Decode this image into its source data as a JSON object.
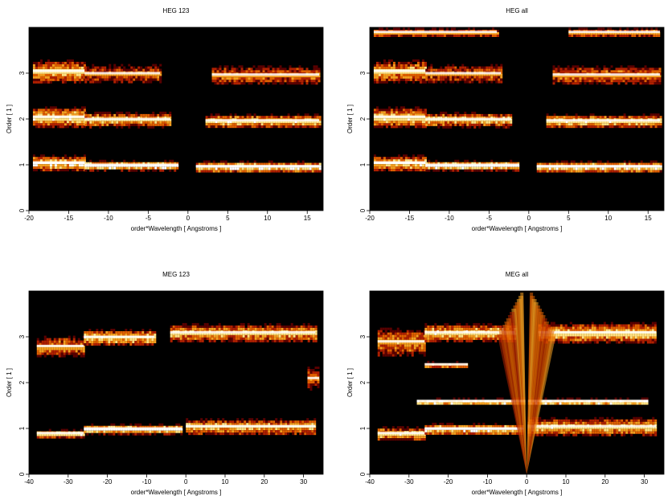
{
  "chart_data": [
    {
      "type": "heatmap",
      "title": "HEG 123",
      "xlabel": "order*Wavelength [ Angstroms ]",
      "ylabel": "Order [ 1 ]",
      "xlim": [
        -20,
        17
      ],
      "ylim": [
        0,
        4
      ],
      "xticks": [
        -20,
        -15,
        -10,
        -5,
        0,
        5,
        10,
        15
      ],
      "yticks": [
        0,
        1,
        2,
        3
      ],
      "colormap": [
        "#000000",
        "#5a0000",
        "#b02000",
        "#e06000",
        "#f5a020",
        "#ffe080",
        "#ffffff"
      ],
      "bands": [
        {
          "order": 1,
          "segments": [
            {
              "x": [
                -19.5,
                -13
              ],
              "center": 1.05,
              "width": 0.35,
              "intensity": 0.8
            },
            {
              "x": [
                -13,
                -1.2
              ],
              "center": 1.0,
              "width": 0.22,
              "intensity": 0.9
            },
            {
              "x": [
                1,
                16.5
              ],
              "center": 0.97,
              "width": 0.25,
              "intensity": 0.85
            }
          ]
        },
        {
          "order": 2,
          "segments": [
            {
              "x": [
                -19.5,
                -13
              ],
              "center": 2.05,
              "width": 0.45,
              "intensity": 0.75
            },
            {
              "x": [
                -13,
                -2.2
              ],
              "center": 2.0,
              "width": 0.32,
              "intensity": 0.7
            },
            {
              "x": [
                2.2,
                16.5
              ],
              "center": 1.97,
              "width": 0.3,
              "intensity": 0.75
            }
          ]
        },
        {
          "order": 3,
          "segments": [
            {
              "x": [
                -19.5,
                -13
              ],
              "center": 3.05,
              "width": 0.5,
              "intensity": 0.65
            },
            {
              "x": [
                -13,
                -3.5
              ],
              "center": 3.0,
              "width": 0.4,
              "intensity": 0.45
            },
            {
              "x": [
                3,
                16.5
              ],
              "center": 2.97,
              "width": 0.4,
              "intensity": 0.5
            }
          ]
        }
      ]
    },
    {
      "type": "heatmap",
      "title": "HEG all",
      "xlabel": "order*Wavelength [ Angstroms ]",
      "ylabel": "Order [ 1 ]",
      "xlim": [
        -20,
        17
      ],
      "ylim": [
        0,
        4
      ],
      "xticks": [
        -20,
        -15,
        -10,
        -5,
        0,
        5,
        10,
        15
      ],
      "yticks": [
        0,
        1,
        2,
        3
      ],
      "colormap": [
        "#000000",
        "#5a0000",
        "#b02000",
        "#e06000",
        "#f5a020",
        "#ffe080",
        "#ffffff"
      ],
      "bands": [
        {
          "order": 1,
          "segments": [
            {
              "x": [
                -19.5,
                -13
              ],
              "center": 1.05,
              "width": 0.35,
              "intensity": 0.8
            },
            {
              "x": [
                -13,
                -1.2
              ],
              "center": 1.0,
              "width": 0.22,
              "intensity": 0.9
            },
            {
              "x": [
                1,
                16.5
              ],
              "center": 0.97,
              "width": 0.25,
              "intensity": 0.85
            }
          ]
        },
        {
          "order": 2,
          "segments": [
            {
              "x": [
                -19.5,
                -13
              ],
              "center": 2.05,
              "width": 0.45,
              "intensity": 0.75
            },
            {
              "x": [
                -13,
                -2.2
              ],
              "center": 2.0,
              "width": 0.32,
              "intensity": 0.7
            },
            {
              "x": [
                2.2,
                16.5
              ],
              "center": 1.97,
              "width": 0.3,
              "intensity": 0.75
            }
          ]
        },
        {
          "order": 3,
          "segments": [
            {
              "x": [
                -19.5,
                -13
              ],
              "center": 3.05,
              "width": 0.5,
              "intensity": 0.65
            },
            {
              "x": [
                -13,
                -3.5
              ],
              "center": 3.0,
              "width": 0.4,
              "intensity": 0.45
            },
            {
              "x": [
                3,
                16.5
              ],
              "center": 2.97,
              "width": 0.4,
              "intensity": 0.5
            }
          ]
        },
        {
          "order": 4,
          "segments": [
            {
              "x": [
                -19.5,
                -4
              ],
              "center": 3.9,
              "width": 0.2,
              "intensity": 0.45
            },
            {
              "x": [
                5,
                16.5
              ],
              "center": 3.9,
              "width": 0.2,
              "intensity": 0.5
            }
          ]
        }
      ]
    },
    {
      "type": "heatmap",
      "title": "MEG 123",
      "xlabel": "order*Wavelength [ Angstroms ]",
      "ylabel": "Order [ 1 ]",
      "xlim": [
        -40,
        35
      ],
      "ylim": [
        0,
        4
      ],
      "xticks": [
        -40,
        -30,
        -20,
        -10,
        0,
        10,
        20,
        30
      ],
      "yticks": [
        0,
        1,
        2,
        3
      ],
      "colormap": [
        "#000000",
        "#5a0000",
        "#b02000",
        "#e06000",
        "#f5a020",
        "#ffe080",
        "#ffffff"
      ],
      "bands": [
        {
          "order": 1,
          "segments": [
            {
              "x": [
                -38,
                -26
              ],
              "center": 0.9,
              "width": 0.18,
              "intensity": 0.75
            },
            {
              "x": [
                -26,
                -1
              ],
              "center": 1.0,
              "width": 0.22,
              "intensity": 0.85
            },
            {
              "x": [
                0,
                33
              ],
              "center": 1.05,
              "width": 0.35,
              "intensity": 0.7
            }
          ]
        },
        {
          "order": 2,
          "segments": [
            {
              "x": [
                31,
                34
              ],
              "center": 2.1,
              "width": 0.5,
              "intensity": 0.4
            }
          ]
        },
        {
          "order": 3,
          "segments": [
            {
              "x": [
                -38,
                -26
              ],
              "center": 2.8,
              "width": 0.45,
              "intensity": 0.55
            },
            {
              "x": [
                -26,
                -8
              ],
              "center": 3.0,
              "width": 0.35,
              "intensity": 0.75
            },
            {
              "x": [
                -4,
                33
              ],
              "center": 3.1,
              "width": 0.4,
              "intensity": 0.65
            }
          ]
        }
      ]
    },
    {
      "type": "heatmap",
      "title": "MEG all",
      "xlabel": "order*Wavelength [ Angstroms ]",
      "ylabel": "Order [ 1 ]",
      "xlim": [
        -40,
        35
      ],
      "ylim": [
        0,
        4
      ],
      "xticks": [
        -40,
        -30,
        -20,
        -10,
        0,
        10,
        20,
        30
      ],
      "yticks": [
        0,
        1,
        2,
        3
      ],
      "colormap": [
        "#000000",
        "#5a0000",
        "#b02000",
        "#e06000",
        "#f5a020",
        "#ffe080",
        "#ffffff"
      ],
      "bands": [
        {
          "order": 1,
          "segments": [
            {
              "x": [
                -38,
                -26
              ],
              "center": 0.9,
              "width": 0.3,
              "intensity": 0.7
            },
            {
              "x": [
                -26,
                -1
              ],
              "center": 1.0,
              "width": 0.25,
              "intensity": 0.85
            },
            {
              "x": [
                0,
                33
              ],
              "center": 1.05,
              "width": 0.4,
              "intensity": 0.7
            }
          ]
        },
        {
          "order": 2,
          "segments": [
            {
              "x": [
                -28,
                31
              ],
              "center": 1.6,
              "width": 0.15,
              "intensity": 0.9
            },
            {
              "x": [
                -26,
                -15
              ],
              "center": 2.4,
              "width": 0.15,
              "intensity": 0.6
            }
          ]
        },
        {
          "order": 3,
          "segments": [
            {
              "x": [
                -38,
                -26
              ],
              "center": 2.9,
              "width": 0.6,
              "intensity": 0.55
            },
            {
              "x": [
                -26,
                -3
              ],
              "center": 3.1,
              "width": 0.4,
              "intensity": 0.75
            },
            {
              "x": [
                3,
                33
              ],
              "center": 3.1,
              "width": 0.45,
              "intensity": 0.7
            }
          ]
        }
      ],
      "fan": {
        "x": 0,
        "intensity": 0.8
      }
    }
  ]
}
